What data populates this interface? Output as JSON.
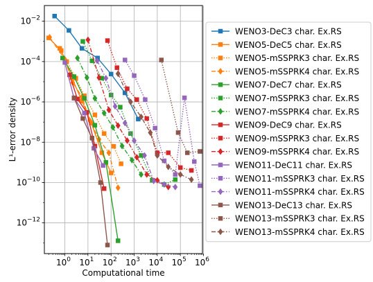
{
  "chart_data": {
    "type": "line",
    "xlabel": "Computational time",
    "ylabel": "L¹-error density",
    "xscale": "log",
    "yscale": "log",
    "xlim": [
      0.13,
      900000
    ],
    "ylim": [
      3e-14,
      0.06
    ],
    "xticks": [
      {
        "value": 1,
        "label": "10",
        "exp": "0"
      },
      {
        "value": 10,
        "label": "10",
        "exp": "1"
      },
      {
        "value": 100,
        "label": "10",
        "exp": "2"
      },
      {
        "value": 1000,
        "label": "10",
        "exp": "3"
      },
      {
        "value": 10000,
        "label": "10",
        "exp": "4"
      },
      {
        "value": 100000,
        "label": "10",
        "exp": "5"
      },
      {
        "value": 1000000,
        "label": "10",
        "exp": "6"
      }
    ],
    "yticks": [
      {
        "value": 1e-12,
        "label": "10",
        "exp": "−12"
      },
      {
        "value": 1e-10,
        "label": "10",
        "exp": "−10"
      },
      {
        "value": 1e-08,
        "label": "10",
        "exp": "−8"
      },
      {
        "value": 1e-06,
        "label": "10",
        "exp": "−6"
      },
      {
        "value": 0.0001,
        "label": "10",
        "exp": "−4"
      },
      {
        "value": 0.01,
        "label": "10",
        "exp": "−2"
      }
    ],
    "grid": true,
    "legend_position": "right",
    "series": [
      {
        "name": "WENO3-DeC3 char. Ex.RS",
        "color": "#1f77b4",
        "marker": "square",
        "dash": "solid",
        "x": [
          0.36,
          1.5,
          5.5,
          26,
          100,
          400,
          1500
        ],
        "y": [
          0.018,
          0.0035,
          0.00045,
          0.00015,
          2.4e-05,
          2.8e-06,
          1.4e-07
        ]
      },
      {
        "name": "WENO5-DeC5 char. Ex.RS",
        "color": "#ff7f0e",
        "marker": "square",
        "dash": "solid",
        "x": [
          0.2,
          0.7,
          2,
          5.5,
          14,
          40,
          100
        ],
        "y": [
          0.0015,
          0.00035,
          1.6e-05,
          1.1e-06,
          9e-08,
          3e-09,
          3e-10
        ]
      },
      {
        "name": "WENO5-mSSPRK3 char. Ex.RS",
        "color": "#ff7f0e",
        "marker": "square",
        "dash": "dot",
        "x": [
          0.6,
          1.2,
          3,
          7,
          20,
          50,
          130,
          270
        ],
        "y": [
          0.00045,
          0.0001,
          1.5e-05,
          2e-06,
          2.3e-07,
          2.7e-08,
          6.3e-09,
          8.5e-10
        ]
      },
      {
        "name": "WENO5-mSSPRK4 char. Ex.RS",
        "color": "#ff7f0e",
        "marker": "diamond",
        "dash": "dashdot",
        "x": [
          0.22,
          1,
          2.2,
          5.5,
          12,
          30,
          80,
          200
        ],
        "y": [
          0.0016,
          0.00013,
          9e-06,
          1.8e-06,
          1.2e-07,
          1.4e-08,
          3e-09,
          5.5e-11
        ]
      },
      {
        "name": "WENO7-DeC7 char. Ex.RS",
        "color": "#2ca02c",
        "marker": "square",
        "dash": "solid",
        "x": [
          0.8,
          2.5,
          7,
          20,
          60,
          200
        ],
        "y": [
          0.00015,
          1.8e-05,
          1.5e-06,
          7e-08,
          1e-09,
          1.3e-13
        ]
      },
      {
        "name": "WENO7-mSSPRK3 char. Ex.RS",
        "color": "#2ca02c",
        "marker": "square",
        "dash": "dot",
        "x": [
          6,
          15,
          40,
          100,
          250,
          700,
          2000,
          6000,
          20000,
          60000
        ],
        "y": [
          0.001,
          0.00011,
          1.5e-05,
          2.2e-06,
          5.5e-07,
          2.7e-08,
          2.2e-09,
          1.3e-10,
          8e-11,
          1.4e-10
        ]
      },
      {
        "name": "WENO7-mSSPRK4 char. Ex.RS",
        "color": "#2ca02c",
        "marker": "diamond",
        "dash": "dashdot",
        "x": [
          3.5,
          9,
          20,
          50,
          120,
          300,
          800,
          2000
        ],
        "y": [
          0.00015,
          1.6e-05,
          1.5e-06,
          2.8e-07,
          5.5e-08,
          6.5e-09,
          1.3e-09,
          2.5e-10
        ]
      },
      {
        "name": "WENO9-DeC9 char. Ex.RS",
        "color": "#d62728",
        "marker": "square",
        "dash": "solid",
        "x": [
          1.6,
          3.5,
          9,
          20,
          50
        ],
        "y": [
          2.2e-05,
          1.4e-06,
          3e-07,
          6.5e-09,
          5e-11
        ]
      },
      {
        "name": "WENO9-mSSPRK3 char. Ex.RS",
        "color": "#d62728",
        "marker": "square",
        "dash": "dot",
        "x": [
          70,
          180,
          500,
          1300,
          3500,
          10000,
          30000,
          100000,
          300000
        ],
        "y": [
          0.0011,
          5e-05,
          4.5e-06,
          1.3e-06,
          1.5e-07,
          3e-09,
          3e-09,
          5.5e-10,
          4e-10
        ]
      },
      {
        "name": "WENO9-mSSPRK4 char. Ex.RS",
        "color": "#d62728",
        "marker": "diamond",
        "dash": "dashdot",
        "x": [
          10,
          30,
          80,
          200,
          500,
          1300,
          3500,
          10000,
          30000
        ],
        "y": [
          0.0012,
          1.6e-05,
          4e-07,
          6.7e-08,
          1.2e-08,
          1.8e-09,
          2.5e-10,
          1.3e-10,
          6e-11
        ]
      },
      {
        "name": "WENO11-DeC11 char. Ex.RS",
        "color": "#9467bd",
        "marker": "square",
        "dash": "solid",
        "x": [
          1,
          2.5,
          7,
          18,
          45
        ],
        "y": [
          9e-05,
          1.5e-06,
          2.8e-07,
          5e-09,
          7e-10
        ]
      },
      {
        "name": "WENO11-mSSPRK3 char. Ex.RS",
        "color": "#9467bd",
        "marker": "square",
        "dash": "dot",
        "x": [
          400,
          1000,
          3000,
          8000,
          20000,
          60000,
          150000,
          400000,
          700000
        ],
        "y": [
          0.00012,
          2e-05,
          1.3e-06,
          5e-08,
          1.2e-09,
          2.5e-10,
          1.6e-06,
          1.1e-09,
          7e-11
        ]
      },
      {
        "name": "WENO11-mSSPRK4 char. Ex.RS",
        "color": "#9467bd",
        "marker": "diamond",
        "dash": "dashdot",
        "x": [
          25,
          60,
          150,
          400,
          1000,
          2800,
          7000,
          20000,
          60000
        ],
        "y": [
          0.00011,
          1.5e-05,
          6e-07,
          9e-08,
          1.2e-08,
          2.2e-09,
          1.2e-10,
          8e-11,
          6e-11
        ]
      },
      {
        "name": "WENO13-DeC13 char. Ex.RS",
        "color": "#8c564b",
        "marker": "square",
        "dash": "solid",
        "x": [
          2.5,
          6,
          15,
          35,
          70
        ],
        "y": [
          1.6e-06,
          1.5e-07,
          1.6e-08,
          1e-10,
          8e-14
        ]
      },
      {
        "name": "WENO13-mSSPRK3 char. Ex.RS",
        "color": "#8c564b",
        "marker": "square",
        "dash": "dot",
        "x": [
          15000,
          80000,
          200000,
          700000
        ],
        "y": [
          0.00012,
          3e-08,
          3e-09,
          3.5e-09
        ]
      },
      {
        "name": "WENO13-mSSPRK4 char. Ex.RS",
        "color": "#8c564b",
        "marker": "diamond",
        "dash": "dashdot",
        "x": [
          200,
          700,
          2000,
          5000,
          10000,
          30000,
          100000,
          300000
        ],
        "y": [
          2.5e-05,
          1e-06,
          1.8e-07,
          3e-08,
          2.2e-09,
          6e-10,
          2.5e-10,
          1.4e-10
        ]
      }
    ]
  }
}
